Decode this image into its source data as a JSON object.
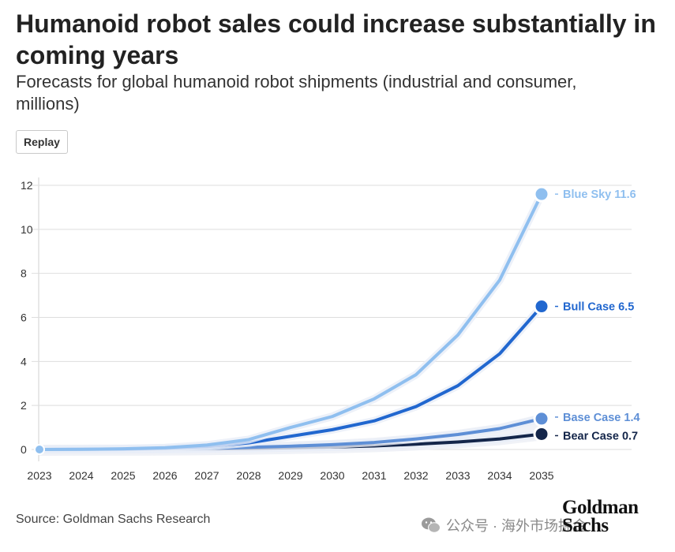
{
  "title": "Humanoid robot sales could increase substantially in coming years",
  "subtitle": "Forecasts for global humanoid robot shipments (industrial and consumer, millions)",
  "replay_label": "Replay",
  "source": "Source: Goldman Sachs Research",
  "logo_text": "Goldman Sachs",
  "watermark_text": "公众号 · 海外市场掘金",
  "chart_data": {
    "type": "line",
    "title": "Humanoid robot sales could increase substantially in coming years",
    "subtitle": "Forecasts for global humanoid robot shipments (industrial and consumer, millions)",
    "xlabel": "",
    "ylabel": "",
    "x": [
      "2023",
      "2024",
      "2025",
      "2026",
      "2027",
      "2028",
      "2029",
      "2030",
      "2031",
      "2032",
      "2033",
      "2034",
      "2035"
    ],
    "ylim": [
      0,
      12
    ],
    "yticks": [
      0,
      2,
      4,
      6,
      8,
      10,
      12
    ],
    "grid": true,
    "legend": "end-of-line labels",
    "series": [
      {
        "name": "Blue Sky",
        "end_label": "Blue Sky 11.6",
        "color": "#8fbfef",
        "values": [
          0,
          0.01,
          0.03,
          0.08,
          0.2,
          0.45,
          1.0,
          1.5,
          2.3,
          3.4,
          5.2,
          7.7,
          11.6
        ]
      },
      {
        "name": "Bull Case",
        "end_label": "Bull Case 6.5",
        "color": "#2167cf",
        "values": [
          0,
          0.01,
          0.02,
          0.06,
          0.13,
          0.3,
          0.6,
          0.9,
          1.3,
          1.95,
          2.9,
          4.35,
          6.5
        ]
      },
      {
        "name": "Base Case",
        "end_label": "Base Case 1.4",
        "color": "#5e8fd6",
        "values": [
          0,
          0.005,
          0.01,
          0.02,
          0.05,
          0.1,
          0.15,
          0.22,
          0.32,
          0.48,
          0.68,
          0.95,
          1.4
        ]
      },
      {
        "name": "Bear Case",
        "end_label": "Bear Case 0.7",
        "color": "#14264a",
        "values": [
          0,
          0.003,
          0.006,
          0.01,
          0.025,
          0.05,
          0.08,
          0.11,
          0.16,
          0.24,
          0.34,
          0.48,
          0.7
        ]
      }
    ]
  }
}
